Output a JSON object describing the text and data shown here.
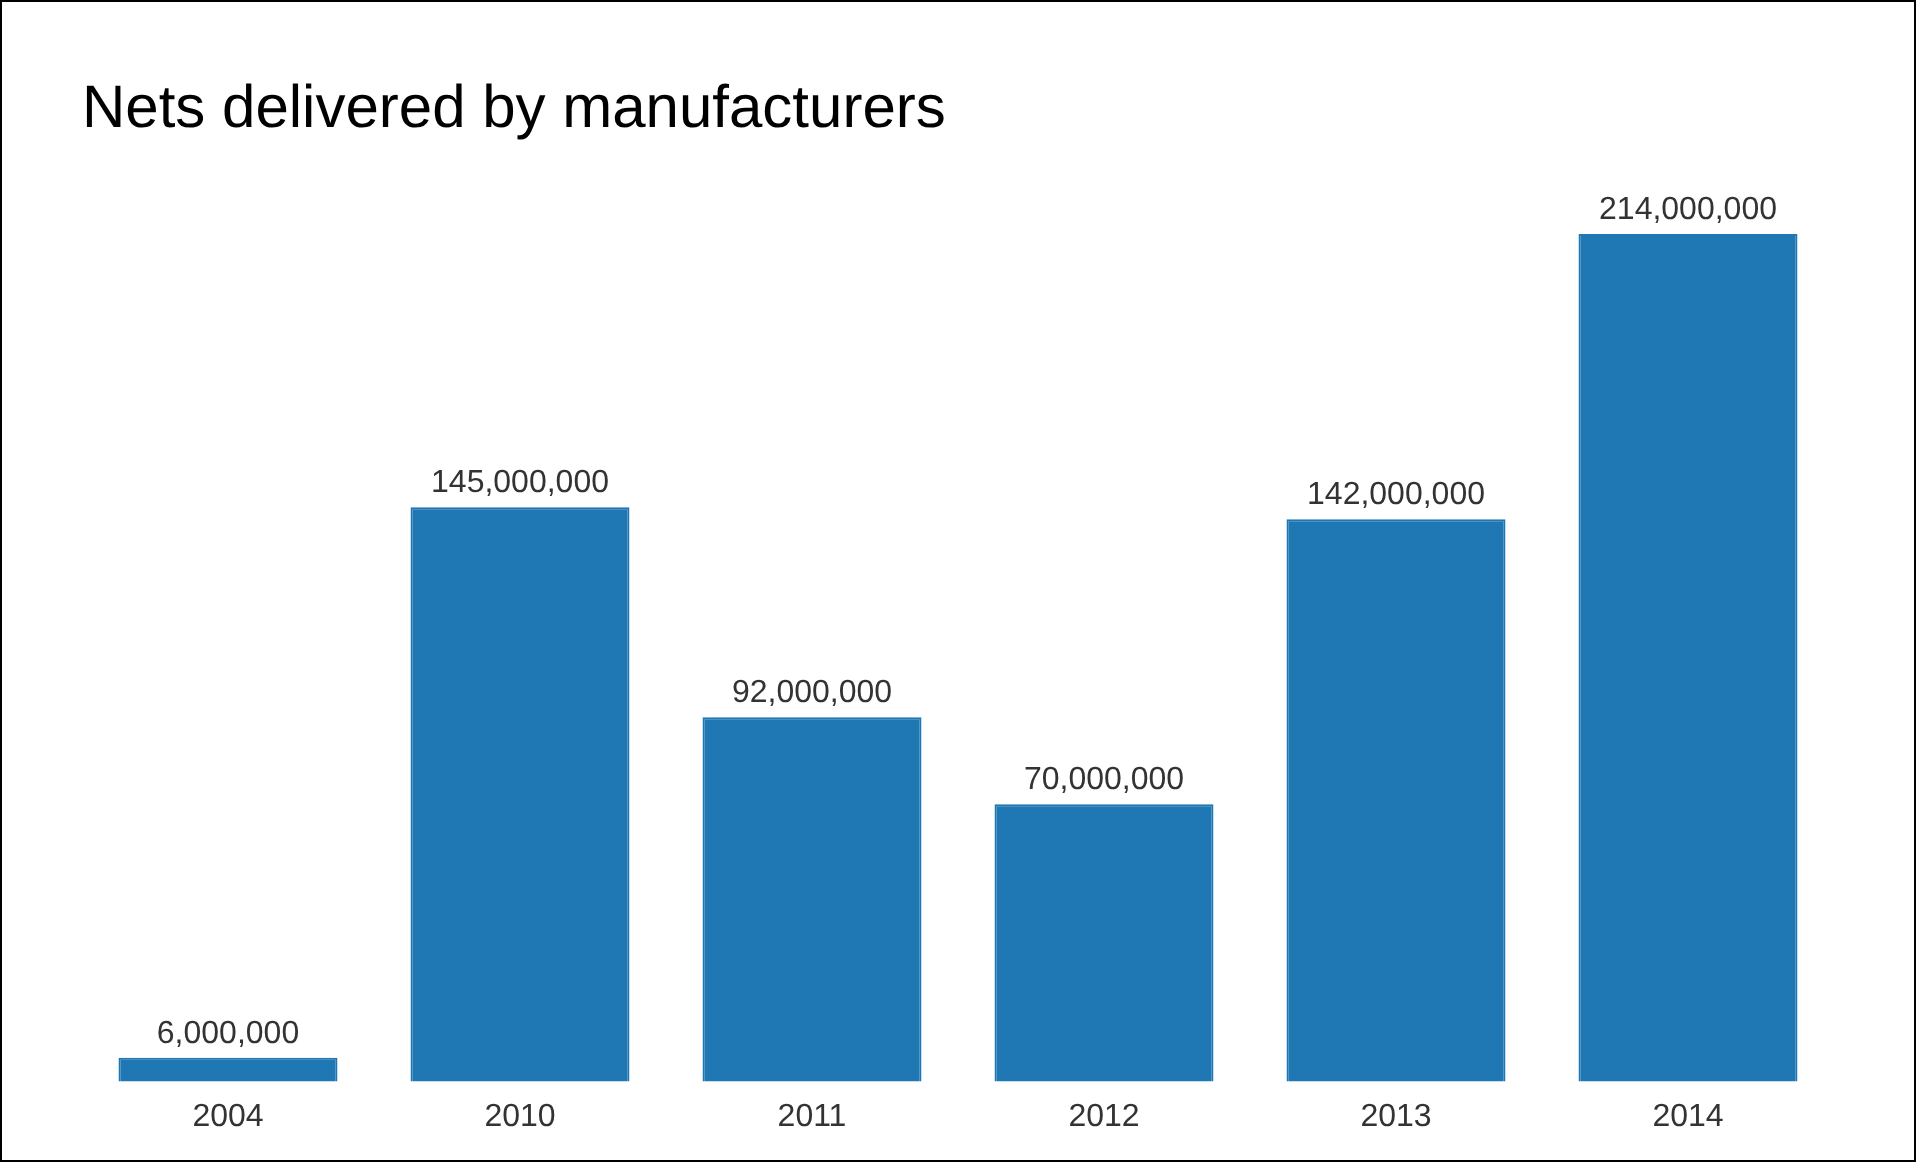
{
  "chart_data": {
    "type": "bar",
    "title": "Nets delivered by manufacturers",
    "categories": [
      "2004",
      "2010",
      "2011",
      "2012",
      "2013",
      "2014"
    ],
    "values": [
      6000000,
      145000000,
      92000000,
      70000000,
      142000000,
      214000000
    ],
    "value_labels": [
      "6,000,000",
      "145,000,000",
      "92,000,000",
      "70,000,000",
      "142,000,000",
      "214,000,000"
    ],
    "color": "#1f77b4",
    "grid": false,
    "legend": false
  }
}
